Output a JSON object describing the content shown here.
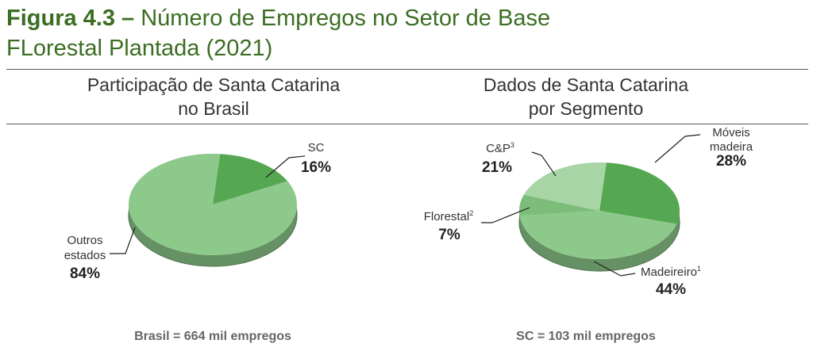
{
  "figure": {
    "title_prefix": "Figura 4.3 –",
    "title_rest": "Número de Empregos no Setor de Base",
    "title_line2": "FLorestal Plantada (2021)"
  },
  "left_panel": {
    "heading_line1": "Participação de Santa Catarina",
    "heading_line2": "no Brasil",
    "footer": "Brasil = 664 mil empregos"
  },
  "right_panel": {
    "heading_line1": "Dados de Santa Catarina",
    "heading_line2": "por Segmento",
    "footer": "SC = 103 mil empregos"
  },
  "colors": {
    "title": "#3b6e22",
    "dark_green": "#56a751",
    "light_green": "#8dc98b",
    "pale_green": "#a8d5a6",
    "mid_green": "#7cbd79"
  },
  "chart_data": [
    {
      "type": "pie",
      "style": "3d",
      "title": "Participação de Santa Catarina no Brasil",
      "slices": [
        {
          "label": "SC",
          "sup": "",
          "value": 16,
          "pct_text": "16%",
          "color": "#56a751"
        },
        {
          "label": "Outros estados",
          "sup": "",
          "value": 84,
          "pct_text": "84%",
          "color": "#8dc98b"
        }
      ]
    },
    {
      "type": "pie",
      "style": "3d",
      "title": "Dados de Santa Catarina por Segmento",
      "slices": [
        {
          "label": "Móveis madeira",
          "sup": "",
          "value": 28,
          "pct_text": "28%",
          "color": "#56a751"
        },
        {
          "label": "Madeireiro",
          "sup": "1",
          "value": 44,
          "pct_text": "44%",
          "color": "#8dc98b"
        },
        {
          "label": "Florestal",
          "sup": "2",
          "value": 7,
          "pct_text": "7%",
          "color": "#7cbd79"
        },
        {
          "label": "C&P",
          "sup": "3",
          "value": 21,
          "pct_text": "21%",
          "color": "#a8d5a6"
        }
      ]
    }
  ]
}
